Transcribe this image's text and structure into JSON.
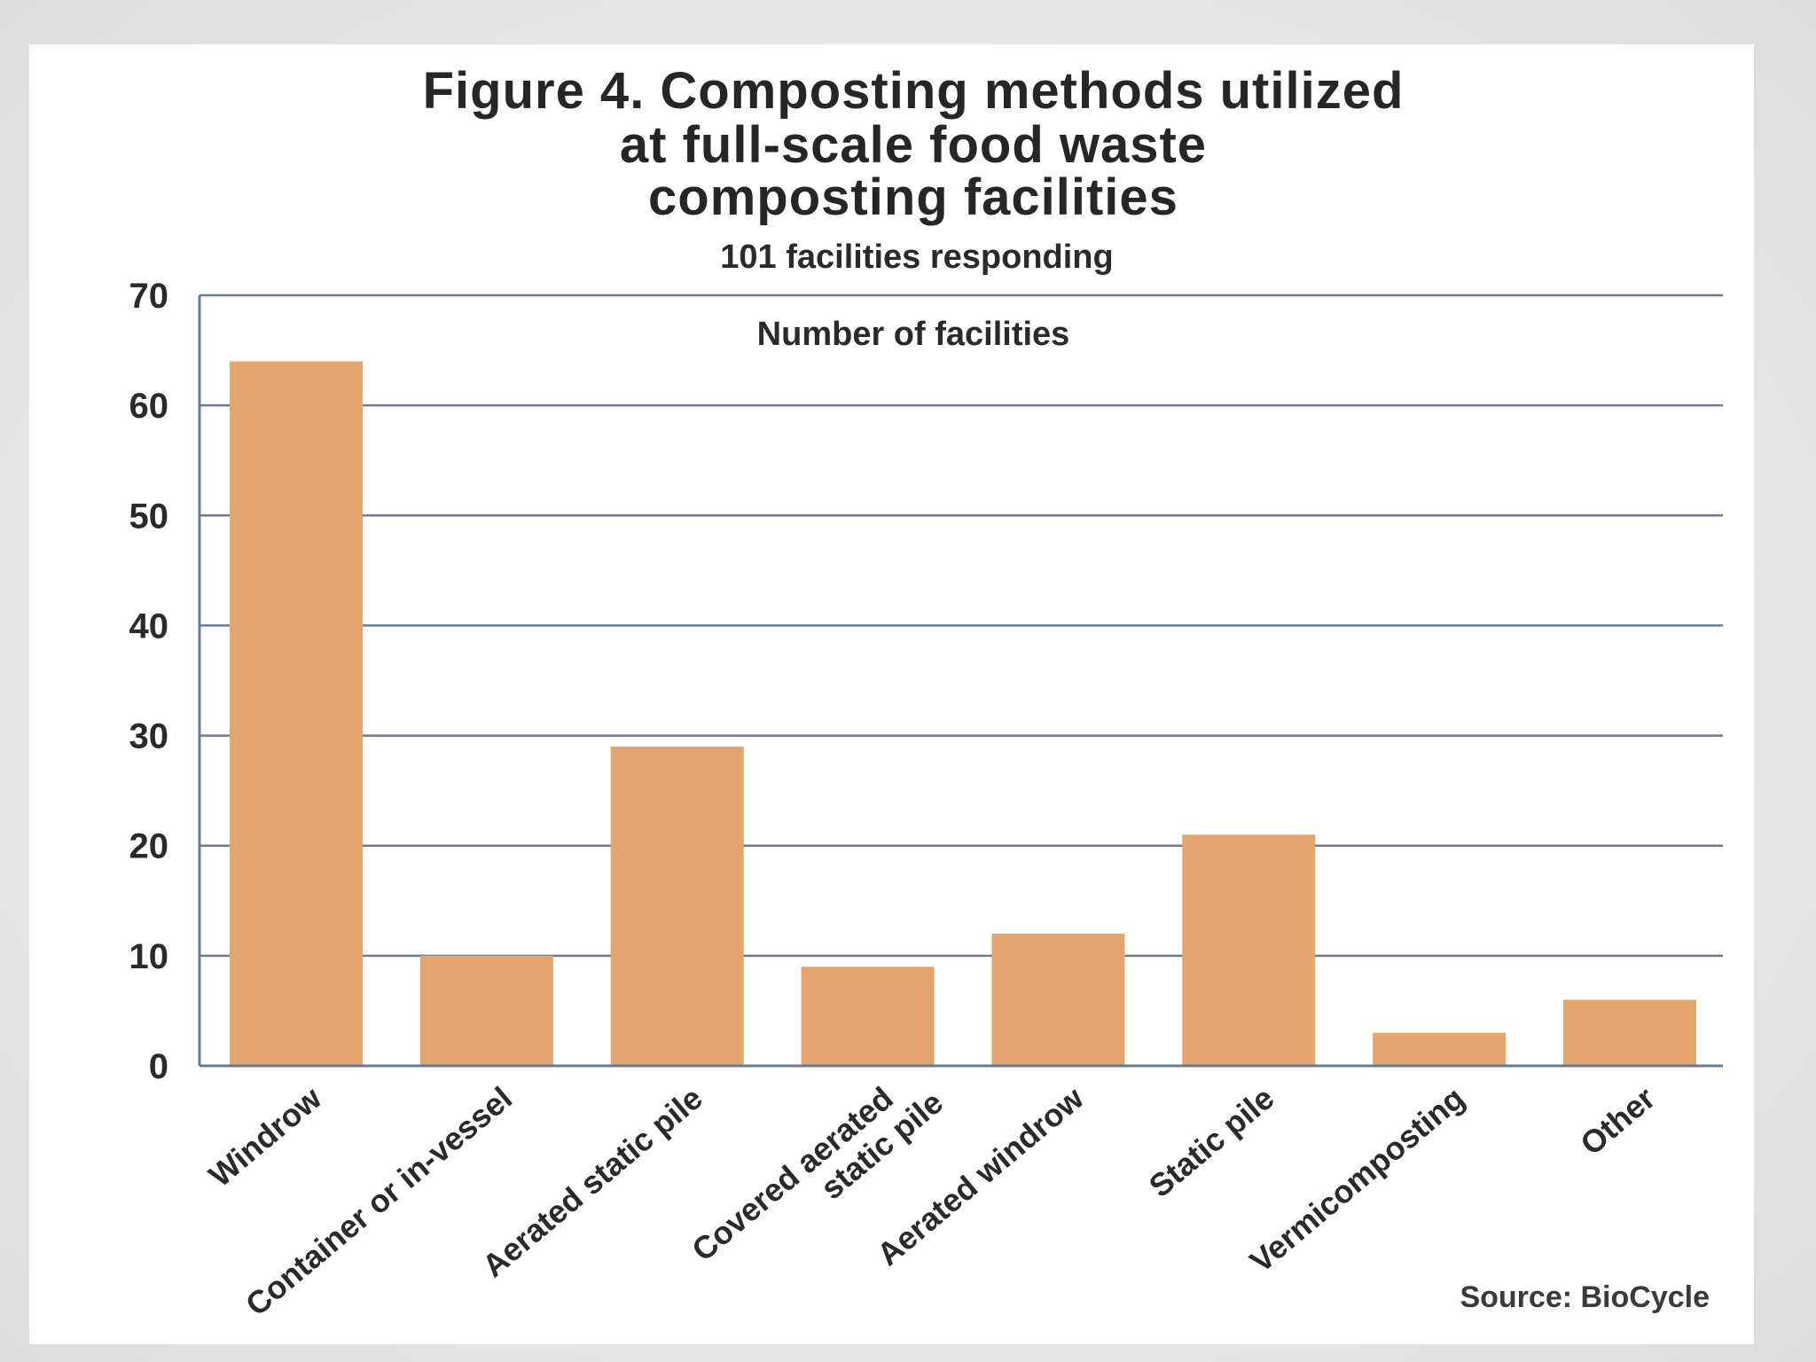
{
  "chart_data": {
    "type": "bar",
    "title_lines": [
      "Figure 4. Composting methods utilized",
      "at full-scale food waste",
      "composting facilities"
    ],
    "subtitle": "101 facilities responding",
    "xlabel": "",
    "ylabel": "Number of facilities",
    "ylim": [
      0,
      70
    ],
    "yticks": [
      "0",
      "10",
      "20",
      "30",
      "40",
      "50",
      "60",
      "70"
    ],
    "categories": [
      [
        "Windrow"
      ],
      [
        "Container or in-vessel"
      ],
      [
        "Aerated static pile"
      ],
      [
        "Covered aerated",
        "static pile"
      ],
      [
        "Aerated windrow"
      ],
      [
        "Static pile"
      ],
      [
        "Vermicomposting"
      ],
      [
        "Other"
      ]
    ],
    "values": [
      64,
      10,
      29,
      9,
      12,
      21,
      3,
      6
    ],
    "bar_color": "#e4a46e",
    "grid": true,
    "source": "Source: BioCycle"
  }
}
